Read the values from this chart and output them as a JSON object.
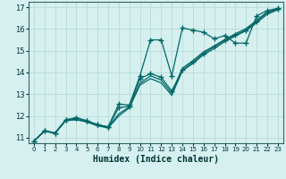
{
  "title": "",
  "xlabel": "Humidex (Indice chaleur)",
  "background_color": "#d6f0f0",
  "grid_color": "#b0d8d0",
  "line_color": "#006666",
  "xlim": [
    -0.5,
    23.5
  ],
  "ylim": [
    10.75,
    17.25
  ],
  "xticks": [
    0,
    1,
    2,
    3,
    4,
    5,
    6,
    7,
    8,
    9,
    10,
    11,
    12,
    13,
    14,
    15,
    16,
    17,
    18,
    19,
    20,
    21,
    22,
    23
  ],
  "yticks": [
    11,
    12,
    13,
    14,
    15,
    16,
    17
  ],
  "lines": [
    {
      "x": [
        0,
        1,
        2,
        3,
        4,
        5,
        6,
        7,
        8,
        9,
        10,
        11,
        12,
        13,
        14,
        15,
        16,
        17,
        18,
        19,
        20,
        21,
        22,
        23
      ],
      "y": [
        10.85,
        11.32,
        11.22,
        11.82,
        11.92,
        11.78,
        11.6,
        11.5,
        12.55,
        12.5,
        13.85,
        15.5,
        15.5,
        13.85,
        16.05,
        15.95,
        15.85,
        15.55,
        15.7,
        15.35,
        15.35,
        16.6,
        16.85,
        16.95
      ],
      "marker": "+",
      "markersize": 4.0,
      "linewidth": 0.9
    },
    {
      "x": [
        0,
        1,
        2,
        3,
        4,
        5,
        6,
        7,
        8,
        9,
        10,
        11,
        12,
        13,
        14,
        15,
        16,
        17,
        18,
        19,
        20,
        21,
        22,
        23
      ],
      "y": [
        10.85,
        11.32,
        11.22,
        11.82,
        11.82,
        11.75,
        11.58,
        11.48,
        12.1,
        12.42,
        13.5,
        13.85,
        13.65,
        13.05,
        14.2,
        14.55,
        14.95,
        15.22,
        15.52,
        15.78,
        16.02,
        16.4,
        16.78,
        16.92
      ],
      "marker": null,
      "markersize": 0,
      "linewidth": 0.9
    },
    {
      "x": [
        0,
        1,
        2,
        3,
        4,
        5,
        6,
        7,
        8,
        9,
        10,
        11,
        12,
        13,
        14,
        15,
        16,
        17,
        18,
        19,
        20,
        21,
        22,
        23
      ],
      "y": [
        10.85,
        11.3,
        11.2,
        11.78,
        11.85,
        11.72,
        11.55,
        11.45,
        12.0,
        12.38,
        13.42,
        13.72,
        13.52,
        12.95,
        14.08,
        14.42,
        14.82,
        15.1,
        15.42,
        15.68,
        15.92,
        16.28,
        16.68,
        16.88
      ],
      "marker": null,
      "markersize": 0,
      "linewidth": 0.9
    },
    {
      "x": [
        0,
        1,
        2,
        3,
        4,
        5,
        6,
        7,
        8,
        9,
        10,
        11,
        12,
        13,
        14,
        15,
        16,
        17,
        18,
        19,
        20,
        21,
        22,
        23
      ],
      "y": [
        10.85,
        11.32,
        11.22,
        11.82,
        11.92,
        11.78,
        11.6,
        11.5,
        12.38,
        12.45,
        13.72,
        13.95,
        13.78,
        13.15,
        14.12,
        14.48,
        14.88,
        15.18,
        15.48,
        15.72,
        15.95,
        16.35,
        16.75,
        16.92
      ],
      "marker": "+",
      "markersize": 4.0,
      "linewidth": 0.9
    }
  ]
}
